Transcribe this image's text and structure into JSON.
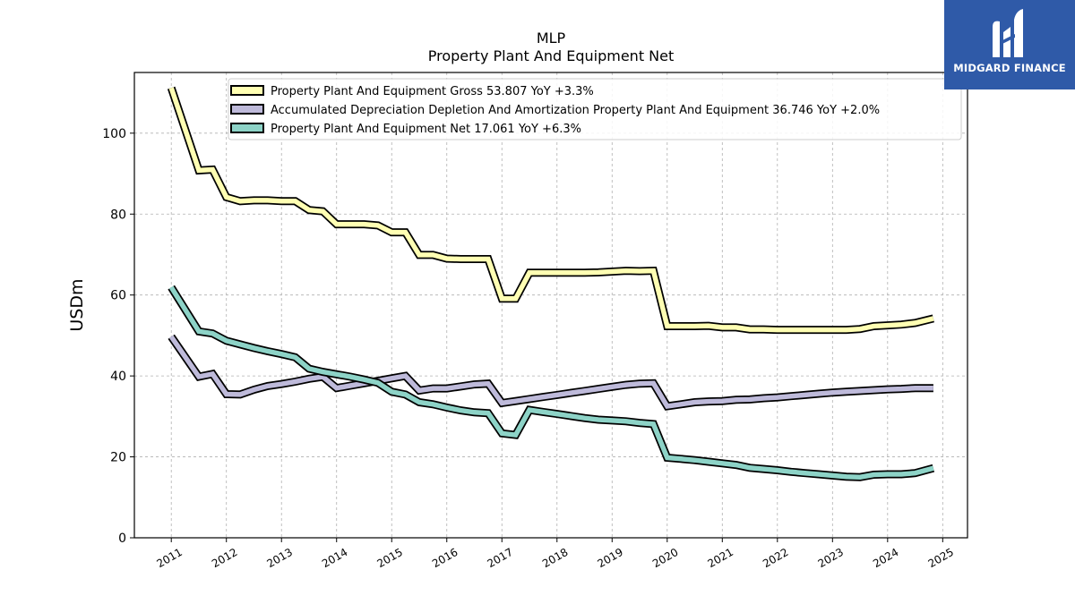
{
  "brand": {
    "name": "MIDGARD FINANCE",
    "color": "#2f5aa8"
  },
  "chart_data": {
    "type": "line",
    "title": "MLP",
    "subtitle": "Property Plant And Equipment Net",
    "ylabel": "USDm",
    "xlabel": "",
    "ylim": [
      0,
      115
    ],
    "xlim": [
      2010.33,
      2025.45
    ],
    "yticks": [
      0,
      20,
      40,
      60,
      80,
      100
    ],
    "xticks": [
      "2011",
      "2012",
      "2013",
      "2014",
      "2015",
      "2016",
      "2017",
      "2018",
      "2019",
      "2020",
      "2021",
      "2022",
      "2023",
      "2024",
      "2025"
    ],
    "grid": true,
    "legend_position": "top",
    "series": [
      {
        "name": "Property Plant And Equipment Gross",
        "legend_label": "Property Plant And Equipment Gross  53.807 YoY +3.3%",
        "color": "#ffffb3",
        "points": [
          [
            2011.0,
            111.2
          ],
          [
            2011.5,
            90.8
          ],
          [
            2011.75,
            91.0
          ],
          [
            2012.0,
            84.2
          ],
          [
            2012.25,
            83.2
          ],
          [
            2012.5,
            83.4
          ],
          [
            2012.75,
            83.4
          ],
          [
            2013.0,
            83.2
          ],
          [
            2013.25,
            83.2
          ],
          [
            2013.5,
            81.0
          ],
          [
            2013.75,
            80.7
          ],
          [
            2014.0,
            77.5
          ],
          [
            2014.25,
            77.5
          ],
          [
            2014.5,
            77.5
          ],
          [
            2014.75,
            77.2
          ],
          [
            2015.0,
            75.5
          ],
          [
            2015.25,
            75.5
          ],
          [
            2015.5,
            69.9
          ],
          [
            2015.75,
            69.9
          ],
          [
            2016.0,
            69.0
          ],
          [
            2016.25,
            68.9
          ],
          [
            2016.5,
            68.9
          ],
          [
            2016.75,
            68.9
          ],
          [
            2017.0,
            59.1
          ],
          [
            2017.25,
            59.1
          ],
          [
            2017.5,
            65.5
          ],
          [
            2017.75,
            65.5
          ],
          [
            2018.0,
            65.5
          ],
          [
            2018.25,
            65.5
          ],
          [
            2018.5,
            65.5
          ],
          [
            2018.75,
            65.6
          ],
          [
            2019.0,
            65.8
          ],
          [
            2019.25,
            66.0
          ],
          [
            2019.5,
            65.9
          ],
          [
            2019.75,
            66.0
          ],
          [
            2020.0,
            52.3
          ],
          [
            2020.25,
            52.3
          ],
          [
            2020.5,
            52.3
          ],
          [
            2020.75,
            52.4
          ],
          [
            2021.0,
            52.0
          ],
          [
            2021.25,
            52.0
          ],
          [
            2021.5,
            51.5
          ],
          [
            2021.75,
            51.5
          ],
          [
            2022.0,
            51.4
          ],
          [
            2022.25,
            51.4
          ],
          [
            2022.5,
            51.4
          ],
          [
            2022.75,
            51.4
          ],
          [
            2023.0,
            51.4
          ],
          [
            2023.25,
            51.4
          ],
          [
            2023.5,
            51.6
          ],
          [
            2023.75,
            52.3
          ],
          [
            2024.0,
            52.5
          ],
          [
            2024.25,
            52.7
          ],
          [
            2024.5,
            53.1
          ],
          [
            2024.83,
            54.2
          ]
        ]
      },
      {
        "name": "Accumulated Depreciation Depletion And Amortization Property Plant And Equipment",
        "legend_label": "Accumulated Depreciation Depletion And Amortization Property Plant And Equipment  36.746 YoY +2.0%",
        "color": "#bebada",
        "points": [
          [
            2011.0,
            49.7
          ],
          [
            2011.5,
            39.8
          ],
          [
            2011.75,
            40.5
          ],
          [
            2012.0,
            35.5
          ],
          [
            2012.25,
            35.4
          ],
          [
            2012.5,
            36.6
          ],
          [
            2012.75,
            37.5
          ],
          [
            2013.0,
            38.0
          ],
          [
            2013.25,
            38.6
          ],
          [
            2013.5,
            39.3
          ],
          [
            2013.75,
            39.8
          ],
          [
            2014.0,
            37.0
          ],
          [
            2014.25,
            37.6
          ],
          [
            2014.5,
            38.2
          ],
          [
            2014.75,
            38.8
          ],
          [
            2015.0,
            39.4
          ],
          [
            2015.25,
            40.0
          ],
          [
            2015.5,
            36.4
          ],
          [
            2015.75,
            36.9
          ],
          [
            2016.0,
            36.9
          ],
          [
            2016.25,
            37.4
          ],
          [
            2016.5,
            37.9
          ],
          [
            2016.75,
            38.1
          ],
          [
            2017.0,
            33.3
          ],
          [
            2017.25,
            33.8
          ],
          [
            2017.5,
            34.3
          ],
          [
            2017.75,
            34.8
          ],
          [
            2018.0,
            35.3
          ],
          [
            2018.25,
            35.8
          ],
          [
            2018.5,
            36.3
          ],
          [
            2018.75,
            36.8
          ],
          [
            2019.0,
            37.3
          ],
          [
            2019.25,
            37.8
          ],
          [
            2019.5,
            38.1
          ],
          [
            2019.75,
            38.2
          ],
          [
            2020.0,
            32.5
          ],
          [
            2020.25,
            33.0
          ],
          [
            2020.5,
            33.5
          ],
          [
            2020.75,
            33.7
          ],
          [
            2021.0,
            33.8
          ],
          [
            2021.25,
            34.1
          ],
          [
            2021.5,
            34.2
          ],
          [
            2021.75,
            34.5
          ],
          [
            2022.0,
            34.7
          ],
          [
            2022.25,
            35.0
          ],
          [
            2022.5,
            35.3
          ],
          [
            2022.75,
            35.6
          ],
          [
            2023.0,
            35.9
          ],
          [
            2023.25,
            36.1
          ],
          [
            2023.5,
            36.3
          ],
          [
            2023.75,
            36.5
          ],
          [
            2024.0,
            36.7
          ],
          [
            2024.25,
            36.8
          ],
          [
            2024.5,
            37.0
          ],
          [
            2024.83,
            37.0
          ]
        ]
      },
      {
        "name": "Property Plant And Equipment Net",
        "legend_label": "Property Plant And Equipment Net  17.061 YoY +6.3%",
        "color": "#8dd3c7",
        "points": [
          [
            2011.0,
            61.9
          ],
          [
            2011.5,
            51.0
          ],
          [
            2011.75,
            50.5
          ],
          [
            2012.0,
            48.7
          ],
          [
            2012.25,
            47.8
          ],
          [
            2012.5,
            46.9
          ],
          [
            2012.75,
            46.1
          ],
          [
            2013.0,
            45.4
          ],
          [
            2013.25,
            44.6
          ],
          [
            2013.5,
            41.8
          ],
          [
            2013.75,
            41.0
          ],
          [
            2014.0,
            40.4
          ],
          [
            2014.25,
            39.8
          ],
          [
            2014.5,
            39.1
          ],
          [
            2014.75,
            38.3
          ],
          [
            2015.0,
            36.1
          ],
          [
            2015.25,
            35.4
          ],
          [
            2015.5,
            33.5
          ],
          [
            2015.75,
            33.0
          ],
          [
            2016.0,
            32.2
          ],
          [
            2016.25,
            31.5
          ],
          [
            2016.5,
            31.0
          ],
          [
            2016.75,
            30.8
          ],
          [
            2017.0,
            25.8
          ],
          [
            2017.25,
            25.4
          ],
          [
            2017.5,
            31.6
          ],
          [
            2017.75,
            31.1
          ],
          [
            2018.0,
            30.6
          ],
          [
            2018.25,
            30.1
          ],
          [
            2018.5,
            29.6
          ],
          [
            2018.75,
            29.2
          ],
          [
            2019.0,
            29.0
          ],
          [
            2019.25,
            28.8
          ],
          [
            2019.5,
            28.4
          ],
          [
            2019.75,
            28.1
          ],
          [
            2020.0,
            19.8
          ],
          [
            2020.25,
            19.5
          ],
          [
            2020.5,
            19.2
          ],
          [
            2020.75,
            18.8
          ],
          [
            2021.0,
            18.4
          ],
          [
            2021.25,
            18.0
          ],
          [
            2021.5,
            17.3
          ],
          [
            2021.75,
            17.0
          ],
          [
            2022.0,
            16.7
          ],
          [
            2022.25,
            16.3
          ],
          [
            2022.5,
            16.0
          ],
          [
            2022.75,
            15.7
          ],
          [
            2023.0,
            15.4
          ],
          [
            2023.25,
            15.1
          ],
          [
            2023.5,
            15.0
          ],
          [
            2023.75,
            15.6
          ],
          [
            2024.0,
            15.7
          ],
          [
            2024.25,
            15.7
          ],
          [
            2024.5,
            16.0
          ],
          [
            2024.83,
            17.2
          ]
        ]
      }
    ]
  }
}
